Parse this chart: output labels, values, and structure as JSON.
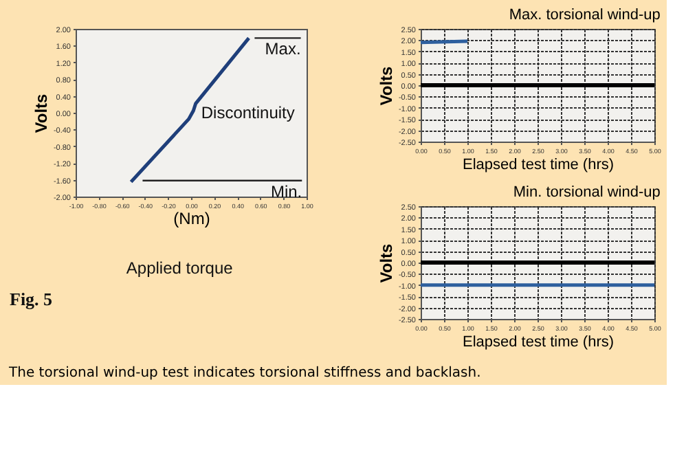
{
  "chart_data": [
    {
      "type": "line",
      "xlabel": "(Nm)",
      "ylabel": "Volts",
      "xlim": [
        -1.0,
        1.0
      ],
      "ylim": [
        -2.0,
        2.0
      ],
      "xticks": [
        {
          "value": -1.0,
          "label": "-1.00"
        },
        {
          "value": -0.8,
          "label": "-0.80"
        },
        {
          "value": -0.6,
          "label": "-0.60"
        },
        {
          "value": -0.4,
          "label": "-0.40"
        },
        {
          "value": -0.2,
          "label": "-0.20"
        },
        {
          "value": 0,
          "label": "0.00"
        },
        {
          "value": 0.2,
          "label": "0.20"
        },
        {
          "value": 0.4,
          "label": "0.40"
        },
        {
          "value": 0.6,
          "label": "0.60"
        },
        {
          "value": 0.8,
          "label": "0.80"
        },
        {
          "value": 1.0,
          "label": "1.00"
        }
      ],
      "yticks": [
        {
          "value": -2.0,
          "label": "-2.00"
        },
        {
          "value": -1.6,
          "label": "-1.60"
        },
        {
          "value": -1.2,
          "label": "-1.20"
        },
        {
          "value": -0.8,
          "label": "-0.80"
        },
        {
          "value": -0.4,
          "label": "-0.40"
        },
        {
          "value": 0,
          "label": "0.00"
        },
        {
          "value": 0.4,
          "label": "0.40"
        },
        {
          "value": 0.8,
          "label": "0.80"
        },
        {
          "value": 1.2,
          "label": "1.20"
        },
        {
          "value": 1.6,
          "label": "1.60"
        },
        {
          "value": 2.0,
          "label": "2.00"
        }
      ],
      "series": [
        {
          "color": "#1f3f7a",
          "x": [
            -0.52,
            -0.02,
            0.02,
            0.04,
            0.5
          ],
          "values": [
            -1.65,
            -0.15,
            0.05,
            0.22,
            1.78
          ]
        },
        {
          "name": "Max.",
          "color": "#222222",
          "x": [
            0.55,
            0.95
          ],
          "values": [
            1.78,
            1.78
          ]
        },
        {
          "name": "Min.",
          "color": "#222222",
          "x": [
            -0.42,
            0.96
          ],
          "values": [
            -1.62,
            -1.62
          ]
        }
      ],
      "annotations": [
        {
          "text": "Discontinuity",
          "x": 0.04,
          "y": 0.0
        },
        "Applied torque",
        "Fig. 5",
        "The torsional wind-up test indicates torsional stiffness and backlash."
      ]
    },
    {
      "type": "line",
      "title": "Max. torsional wind-up",
      "xlabel": "Elapsed test time (hrs)",
      "ylabel": "Volts",
      "xlim": [
        0,
        5.0
      ],
      "ylim": [
        -2.5,
        2.5
      ],
      "grid": true,
      "xticks": [
        {
          "value": 0,
          "label": "0.00"
        },
        {
          "value": 0.5,
          "label": "0.50"
        },
        {
          "value": 1.0,
          "label": "1.00"
        },
        {
          "value": 1.5,
          "label": "1.50"
        },
        {
          "value": 2.0,
          "label": "2.00"
        },
        {
          "value": 2.5,
          "label": "2.50"
        },
        {
          "value": 3.0,
          "label": "3.00"
        },
        {
          "value": 3.5,
          "label": "3.50"
        },
        {
          "value": 4.0,
          "label": "4.00"
        },
        {
          "value": 4.5,
          "label": "4.50"
        },
        {
          "value": 5.0,
          "label": "5.00"
        }
      ],
      "yticks": [
        {
          "value": -2.5,
          "label": "-2.50"
        },
        {
          "value": -2.0,
          "label": "-2.00"
        },
        {
          "value": -1.5,
          "label": "-1.50"
        },
        {
          "value": -1.0,
          "label": "-1.00"
        },
        {
          "value": -0.5,
          "label": "-0.50"
        },
        {
          "value": 0,
          "label": "0.00"
        },
        {
          "value": 0.5,
          "label": "0.50"
        },
        {
          "value": 1.0,
          "label": "1.00"
        },
        {
          "value": 1.5,
          "label": "1.50"
        },
        {
          "value": 2.0,
          "label": "2.00"
        },
        {
          "value": 2.5,
          "label": "2.50"
        }
      ],
      "series": [
        {
          "color": "#2e5f9e",
          "x": [
            0,
            1.0
          ],
          "values": [
            1.9,
            1.95
          ]
        }
      ],
      "ref_lines": [
        {
          "axis": "y",
          "value": 0,
          "color": "#000000"
        }
      ]
    },
    {
      "type": "line",
      "title": "Min. torsional wind-up",
      "xlabel": "Elapsed test time (hrs)",
      "ylabel": "Volts",
      "xlim": [
        0,
        5.0
      ],
      "ylim": [
        -2.5,
        2.5
      ],
      "grid": true,
      "xticks": [
        {
          "value": 0,
          "label": "0.00"
        },
        {
          "value": 0.5,
          "label": "0.50"
        },
        {
          "value": 1.0,
          "label": "1.00"
        },
        {
          "value": 1.5,
          "label": "1.50"
        },
        {
          "value": 2.0,
          "label": "2.00"
        },
        {
          "value": 2.5,
          "label": "2.50"
        },
        {
          "value": 3.0,
          "label": "3.00"
        },
        {
          "value": 3.5,
          "label": "3.50"
        },
        {
          "value": 4.0,
          "label": "4.00"
        },
        {
          "value": 4.5,
          "label": "4.50"
        },
        {
          "value": 5.0,
          "label": "5.00"
        }
      ],
      "yticks": [
        {
          "value": -2.5,
          "label": "-2.50"
        },
        {
          "value": -2.0,
          "label": "-2.00"
        },
        {
          "value": -1.5,
          "label": "-1.50"
        },
        {
          "value": -1.0,
          "label": "-1.00"
        },
        {
          "value": -0.5,
          "label": "-0.50"
        },
        {
          "value": 0,
          "label": "0.00"
        },
        {
          "value": 0.5,
          "label": "0.50"
        },
        {
          "value": 1.0,
          "label": "1.00"
        },
        {
          "value": 1.5,
          "label": "1.50"
        },
        {
          "value": 2.0,
          "label": "2.00"
        },
        {
          "value": 2.5,
          "label": "2.50"
        }
      ],
      "series": [
        {
          "color": "#2e5f9e",
          "x": [
            0,
            5.0
          ],
          "values": [
            -1.0,
            -1.0
          ]
        }
      ],
      "ref_lines": [
        {
          "axis": "y",
          "value": 0,
          "color": "#000000"
        }
      ]
    }
  ]
}
